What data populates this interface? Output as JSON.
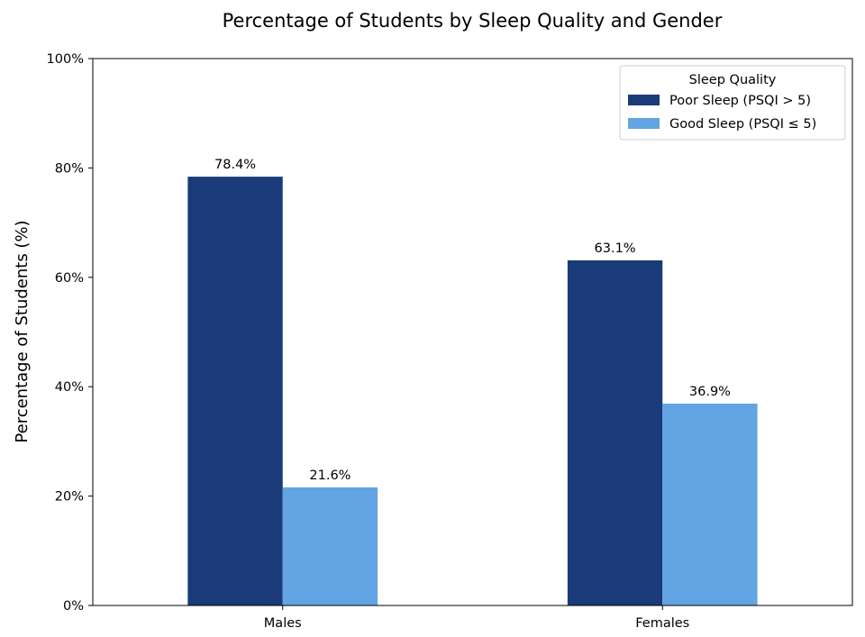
{
  "chart_data": {
    "type": "bar",
    "title": "Percentage of Students by Sleep Quality and Gender",
    "xlabel": "",
    "ylabel": "Percentage of Students (%)",
    "categories": [
      "Males",
      "Females"
    ],
    "series": [
      {
        "name": "Poor Sleep (PSQI > 5)",
        "values": [
          78.4,
          63.1
        ],
        "color": "#1a3a7a"
      },
      {
        "name": "Good Sleep (PSQI ≤ 5)",
        "values": [
          21.6,
          36.9
        ],
        "color": "#62a5e2"
      }
    ],
    "ylim": [
      0,
      100
    ],
    "yticks": [
      0,
      20,
      40,
      60,
      80,
      100
    ],
    "ytick_labels": [
      "0%",
      "20%",
      "40%",
      "60%",
      "80%",
      "100%"
    ],
    "data_labels": [
      [
        "78.4%",
        "63.1%"
      ],
      [
        "21.6%",
        "36.9%"
      ]
    ],
    "legend": {
      "title": "Sleep Quality",
      "position": "upper right"
    },
    "grid": false
  }
}
